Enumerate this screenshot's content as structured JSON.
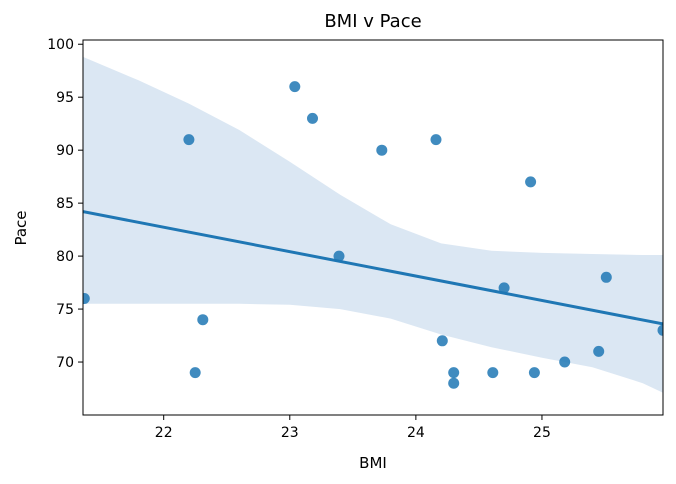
{
  "chart_data": {
    "type": "scatter",
    "title": "BMI v Pace",
    "xlabel": "BMI",
    "ylabel": "Pace",
    "xlim": [
      21.36,
      25.96
    ],
    "ylim": [
      65,
      100.4
    ],
    "xticks": [
      22,
      23,
      24,
      25
    ],
    "yticks": [
      70,
      75,
      80,
      85,
      90,
      95,
      100
    ],
    "grid": false,
    "legend": "none",
    "colors": {
      "points": "#1f77b4",
      "line": "#1f77b4",
      "band": "#dbe7f3"
    },
    "points": [
      {
        "x": 21.37,
        "y": 76
      },
      {
        "x": 22.2,
        "y": 91
      },
      {
        "x": 22.25,
        "y": 69
      },
      {
        "x": 22.31,
        "y": 74
      },
      {
        "x": 23.04,
        "y": 96
      },
      {
        "x": 23.18,
        "y": 93
      },
      {
        "x": 23.39,
        "y": 80
      },
      {
        "x": 23.73,
        "y": 90
      },
      {
        "x": 24.16,
        "y": 91
      },
      {
        "x": 24.21,
        "y": 72
      },
      {
        "x": 24.3,
        "y": 69
      },
      {
        "x": 24.3,
        "y": 68
      },
      {
        "x": 24.61,
        "y": 69
      },
      {
        "x": 24.7,
        "y": 77
      },
      {
        "x": 24.91,
        "y": 87
      },
      {
        "x": 24.94,
        "y": 69
      },
      {
        "x": 25.18,
        "y": 70
      },
      {
        "x": 25.45,
        "y": 71
      },
      {
        "x": 25.51,
        "y": 78
      },
      {
        "x": 25.96,
        "y": 73
      }
    ],
    "regression_line": {
      "x": [
        21.36,
        25.96
      ],
      "y": [
        84.2,
        73.6
      ]
    },
    "confidence_band": {
      "x": [
        21.36,
        21.8,
        22.2,
        22.6,
        23.0,
        23.4,
        23.8,
        24.2,
        24.6,
        25.0,
        25.4,
        25.8,
        25.96
      ],
      "upper": [
        98.8,
        96.6,
        94.4,
        91.9,
        88.9,
        85.8,
        83.0,
        81.2,
        80.5,
        80.3,
        80.2,
        80.1,
        80.1
      ],
      "lower": [
        75.5,
        75.5,
        75.5,
        75.5,
        75.4,
        75.0,
        74.1,
        72.6,
        71.4,
        70.4,
        69.5,
        68.0,
        67.1
      ]
    }
  }
}
